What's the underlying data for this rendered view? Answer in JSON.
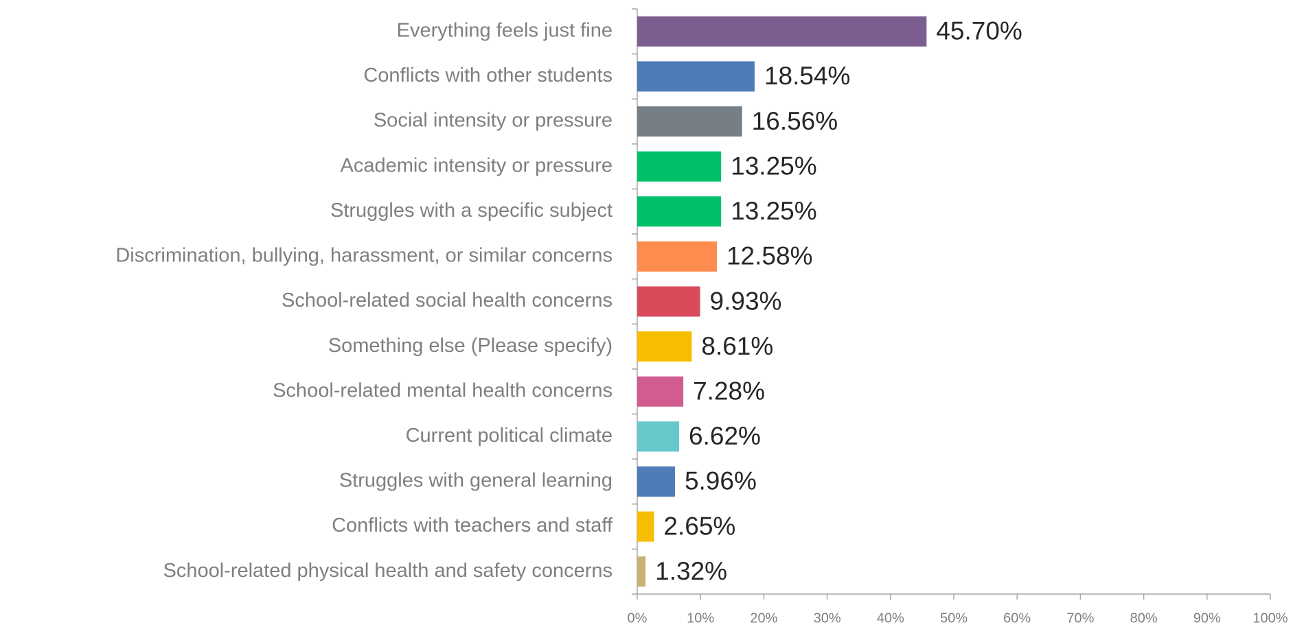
{
  "chart_data": {
    "type": "bar",
    "orientation": "horizontal",
    "categories": [
      "Everything feels just fine",
      "Conflicts with other students",
      "Social intensity or pressure",
      "Academic intensity or pressure",
      "Struggles with a specific subject",
      "Discrimination, bullying, harassment, or similar concerns",
      "School-related social health concerns",
      "Something else (Please specify)",
      "School-related mental health concerns",
      "Current political climate",
      "Struggles with general learning",
      "Conflicts with teachers and staff",
      "School-related physical health and safety concerns"
    ],
    "values": [
      45.7,
      18.54,
      16.56,
      13.25,
      13.25,
      12.58,
      9.93,
      8.61,
      7.28,
      6.62,
      5.96,
      2.65,
      1.32
    ],
    "value_labels": [
      "45.70%",
      "18.54%",
      "16.56%",
      "13.25%",
      "13.25%",
      "12.58%",
      "9.93%",
      "8.61%",
      "7.28%",
      "6.62%",
      "5.96%",
      "2.65%",
      "1.32%"
    ],
    "colors": [
      "#7b5e8f",
      "#4f7bb8",
      "#767f86",
      "#00c06a",
      "#00c06a",
      "#ff8c4f",
      "#d94a5a",
      "#f7bd00",
      "#d25b90",
      "#67c8cc",
      "#4f7bb8",
      "#f7bd00",
      "#c8b273"
    ],
    "xlim": [
      0,
      100
    ],
    "xticks": [
      {
        "value": 0,
        "label": "0%"
      },
      {
        "value": 10,
        "label": "10%"
      },
      {
        "value": 20,
        "label": "20%"
      },
      {
        "value": 30,
        "label": "30%"
      },
      {
        "value": 40,
        "label": "40%"
      },
      {
        "value": 50,
        "label": "50%"
      },
      {
        "value": 60,
        "label": "60%"
      },
      {
        "value": 70,
        "label": "70%"
      },
      {
        "value": 80,
        "label": "80%"
      },
      {
        "value": 90,
        "label": "90%"
      },
      {
        "value": 100,
        "label": "100%"
      }
    ],
    "grid": false
  }
}
